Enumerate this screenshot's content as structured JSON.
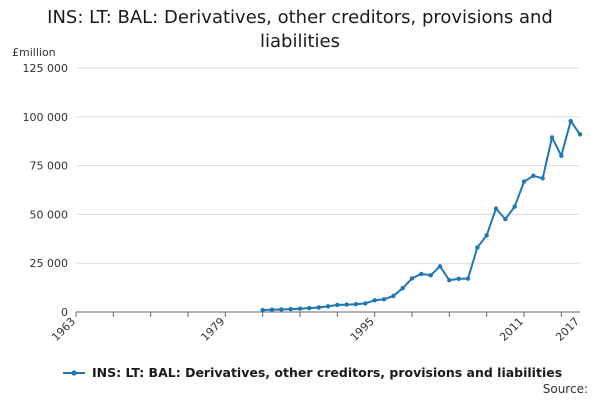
{
  "chart_data": {
    "type": "line",
    "title": "INS: LT: BAL: Derivatives, other creditors, provisions and liabilities",
    "unit": "£million",
    "source": "Source:",
    "ylim": [
      0,
      125000
    ],
    "xlim": [
      1963,
      2017
    ],
    "y_ticks": [
      0,
      25000,
      50000,
      75000,
      100000,
      125000
    ],
    "y_tick_labels": [
      "0",
      "25 000",
      "50 000",
      "75 000",
      "100 000",
      "125 000"
    ],
    "x_tick_labels": [
      "1963",
      "1979",
      "1995",
      "2011",
      "2017"
    ],
    "x_tick_values": [
      1963,
      1979,
      1995,
      2011,
      2017
    ],
    "x_minor_ticks": [
      1963,
      1967,
      1971,
      1975,
      1979,
      1983,
      1987,
      1991,
      1995,
      1999,
      2003,
      2007,
      2011,
      2015
    ],
    "grid": "horizontal",
    "legend_position": "bottom",
    "colors": {
      "series": "#1f77b4",
      "grid": "#dddddd",
      "axis": "#666666"
    },
    "series": [
      {
        "name": "INS: LT: BAL: Derivatives, other creditors, provisions and liabilities",
        "x": [
          1983,
          1984,
          1985,
          1986,
          1987,
          1988,
          1989,
          1990,
          1991,
          1992,
          1993,
          1994,
          1995,
          1996,
          1997,
          1998,
          1999,
          2000,
          2001,
          2002,
          2003,
          2004,
          2005,
          2006,
          2007,
          2008,
          2009,
          2010,
          2011,
          2012,
          2013,
          2014,
          2015,
          2016,
          2017
        ],
        "values": [
          1000,
          1200,
          1300,
          1500,
          1700,
          2000,
          2300,
          2900,
          3600,
          3800,
          4000,
          4400,
          6000,
          6500,
          8200,
          12200,
          17200,
          19500,
          18800,
          23400,
          16300,
          17000,
          17100,
          33000,
          39300,
          53000,
          47600,
          54000,
          66800,
          69800,
          68500,
          89400,
          80000,
          97800,
          91000
        ]
      }
    ]
  }
}
